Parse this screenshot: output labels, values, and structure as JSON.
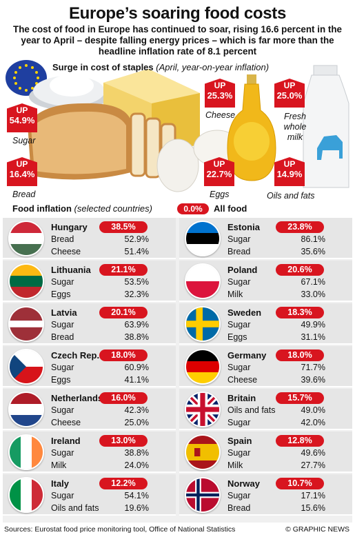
{
  "title": "Europe’s soaring food costs",
  "subtitle": "The cost of food in Europe has continued to soar, rising 16.6 percent in the year to April – despite falling energy prices – which is far more than the headline inflation rate of 8.1 percent",
  "staples": {
    "heading": "Surge in cost of staples",
    "note": "(April, year-on-year inflation)",
    "up_word": "UP",
    "items": [
      {
        "label": "Sugar",
        "value": "54.9%"
      },
      {
        "label": "Bread",
        "value": "16.4%"
      },
      {
        "label": "Cheese",
        "value": "25.3%"
      },
      {
        "label": "Eggs",
        "value": "22.7%"
      },
      {
        "label": "Oils and fats",
        "value": "14.9%"
      },
      {
        "label": "Fresh whole milk",
        "value": "25.0%"
      }
    ]
  },
  "food_inflation": {
    "heading": "Food inflation",
    "note": "(selected countries)",
    "legend_value": "0.0%",
    "legend_label": "All food"
  },
  "countries": [
    {
      "name": "Hungary",
      "all": "38.5%",
      "items": [
        {
          "label": "Bread",
          "value": "52.9%"
        },
        {
          "label": "Cheese",
          "value": "51.4%"
        }
      ]
    },
    {
      "name": "Estonia",
      "all": "23.8%",
      "items": [
        {
          "label": "Sugar",
          "value": "86.1%"
        },
        {
          "label": "Bread",
          "value": "35.6%"
        }
      ]
    },
    {
      "name": "Lithuania",
      "all": "21.1%",
      "items": [
        {
          "label": "Sugar",
          "value": "53.5%"
        },
        {
          "label": "Eggs",
          "value": "32.3%"
        }
      ]
    },
    {
      "name": "Poland",
      "all": "20.6%",
      "items": [
        {
          "label": "Sugar",
          "value": "67.1%"
        },
        {
          "label": "Milk",
          "value": "33.0%"
        }
      ]
    },
    {
      "name": "Latvia",
      "all": "20.1%",
      "items": [
        {
          "label": "Sugar",
          "value": "63.9%"
        },
        {
          "label": "Bread",
          "value": "38.8%"
        }
      ]
    },
    {
      "name": "Sweden",
      "all": "18.3%",
      "items": [
        {
          "label": "Sugar",
          "value": "49.9%"
        },
        {
          "label": "Eggs",
          "value": "31.1%"
        }
      ]
    },
    {
      "name": "Czech Rep.",
      "all": "18.0%",
      "items": [
        {
          "label": "Sugar",
          "value": "60.9%"
        },
        {
          "label": "Eggs",
          "value": "41.1%"
        }
      ]
    },
    {
      "name": "Germany",
      "all": "18.0%",
      "items": [
        {
          "label": "Sugar",
          "value": "71.7%"
        },
        {
          "label": "Cheese",
          "value": "39.6%"
        }
      ]
    },
    {
      "name": "Netherlands",
      "all": "16.0%",
      "items": [
        {
          "label": "Sugar",
          "value": "42.3%"
        },
        {
          "label": "Cheese",
          "value": "25.0%"
        }
      ]
    },
    {
      "name": "Britain",
      "all": "15.7%",
      "items": [
        {
          "label": "Oils and fats",
          "value": "49.0%"
        },
        {
          "label": "Sugar",
          "value": "42.0%"
        }
      ]
    },
    {
      "name": "Ireland",
      "all": "13.0%",
      "items": [
        {
          "label": "Sugar",
          "value": "38.8%"
        },
        {
          "label": "Milk",
          "value": "24.0%"
        }
      ]
    },
    {
      "name": "Spain",
      "all": "12.8%",
      "items": [
        {
          "label": "Sugar",
          "value": "49.6%"
        },
        {
          "label": "Milk",
          "value": "27.7%"
        }
      ]
    },
    {
      "name": "Italy",
      "all": "12.2%",
      "items": [
        {
          "label": "Sugar",
          "value": "54.1%"
        },
        {
          "label": "Oils and fats",
          "value": "19.6%"
        }
      ]
    },
    {
      "name": "Norway",
      "all": "10.7%",
      "items": [
        {
          "label": "Sugar",
          "value": "17.1%"
        },
        {
          "label": "Bread",
          "value": "15.6%"
        }
      ]
    }
  ],
  "sources": "Sources: Eurostat food price monitoring tool, Office of National Statistics",
  "credit": "© GRAPHIC NEWS",
  "colors": {
    "accent": "#d8151f",
    "card": "#e6e6e6"
  }
}
